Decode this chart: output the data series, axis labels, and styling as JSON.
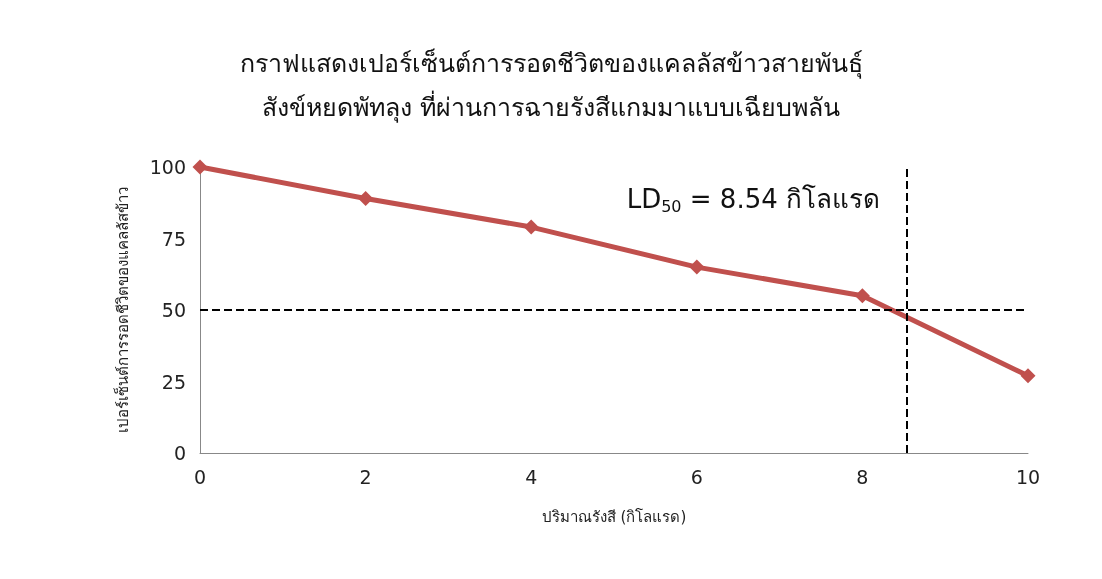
{
  "chart_data": {
    "type": "line",
    "title": "กราฟแสดงเปอร์เซ็นต์การรอดชีวิตของแคลลัสข้าวสายพันธุ์\nสังข์หยดพัทลุง ที่ผ่านการฉายรังสีแกมมาแบบเฉียบพลัน",
    "xlabel": "ปริมาณรังสี (กิโลแรด)",
    "ylabel": "เปอร์เซ็นต์การรอดชีวิตของแคลลัสข้าว",
    "x": [
      0,
      2,
      4,
      6,
      8,
      10
    ],
    "series": [
      {
        "color": "#c0504d",
        "values": [
          100,
          89,
          79,
          65,
          55,
          27
        ]
      }
    ],
    "xlim": [
      0,
      10
    ],
    "xticks": [
      0,
      2,
      4,
      6,
      8,
      10
    ],
    "ylim": [
      0,
      100
    ],
    "yticks": [
      0,
      25,
      50,
      75,
      100
    ],
    "marker": "diamond",
    "line_style": "solid",
    "grid": false,
    "ref_lines": [
      {
        "axis": "y",
        "value": 50,
        "color": "#000000",
        "line_style": "dashed"
      },
      {
        "axis": "x",
        "value": 8.54,
        "color": "#000000",
        "line_style": "dashed"
      }
    ],
    "annotations": [
      "LD$_{50}$ = 8.54 กิโลแรด"
    ]
  }
}
